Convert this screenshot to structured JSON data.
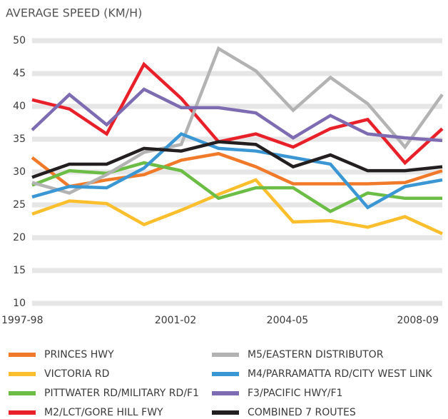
{
  "chart_data": {
    "type": "line",
    "title": "AVERAGE SPEED (KM/H)",
    "categories": [
      "1997-98",
      null,
      null,
      null,
      "2001-02",
      null,
      null,
      "2004-05",
      null,
      null,
      null,
      "2008-09"
    ],
    "series": [
      {
        "name": "PRINCES HWY",
        "color": "#f07a2a",
        "values": [
          32.2,
          27.8,
          28.8,
          29.6,
          31.8,
          32.8,
          30.8,
          28.2,
          28.2,
          28.2,
          28.4,
          30.2
        ]
      },
      {
        "name": "VICTORIA RD",
        "color": "#fbbf2d",
        "values": [
          23.6,
          25.6,
          25.2,
          22.0,
          24.2,
          26.6,
          28.8,
          22.4,
          22.6,
          21.6,
          23.2,
          20.6
        ]
      },
      {
        "name": "PITTWATER RD/MILITARY RD/F1",
        "color": "#6cbd45",
        "values": [
          28.0,
          30.2,
          29.8,
          31.4,
          30.2,
          26.0,
          27.6,
          27.6,
          24.0,
          26.8,
          26.0,
          26.0
        ]
      },
      {
        "name": "M2/LCT/GORE HILL FWY",
        "color": "#e8202a",
        "values": [
          41.0,
          39.6,
          35.8,
          46.4,
          41.2,
          34.6,
          35.8,
          33.8,
          36.6,
          38.0,
          31.4,
          36.6
        ]
      },
      {
        "name": "M5/EASTERN DISTRIBUTOR",
        "color": "#b3b3b3",
        "values": [
          28.4,
          26.8,
          29.6,
          33.0,
          34.2,
          48.8,
          45.4,
          39.4,
          44.4,
          40.4,
          33.8,
          41.8
        ]
      },
      {
        "name": "M4/PARRAMATTA RD/CITY WEST LINK",
        "color": "#3b97d3",
        "values": [
          26.2,
          27.8,
          27.6,
          30.6,
          35.8,
          33.6,
          33.2,
          32.2,
          31.2,
          24.6,
          27.8,
          28.8
        ]
      },
      {
        "name": "F3/PACIFIC HWY/F1",
        "color": "#7e6cb2",
        "values": [
          36.4,
          41.8,
          37.2,
          42.6,
          39.8,
          39.8,
          39.0,
          35.2,
          38.6,
          35.8,
          35.2,
          34.8
        ]
      },
      {
        "name": "COMBINED 7 ROUTES",
        "color": "#231f20",
        "values": [
          29.2,
          31.2,
          31.2,
          33.6,
          33.2,
          34.6,
          34.2,
          30.8,
          32.6,
          30.2,
          30.2,
          30.8
        ]
      }
    ],
    "ylim": [
      10,
      50
    ],
    "yticks": [
      10,
      15,
      20,
      25,
      30,
      35,
      40,
      45,
      50
    ],
    "grid": true
  }
}
